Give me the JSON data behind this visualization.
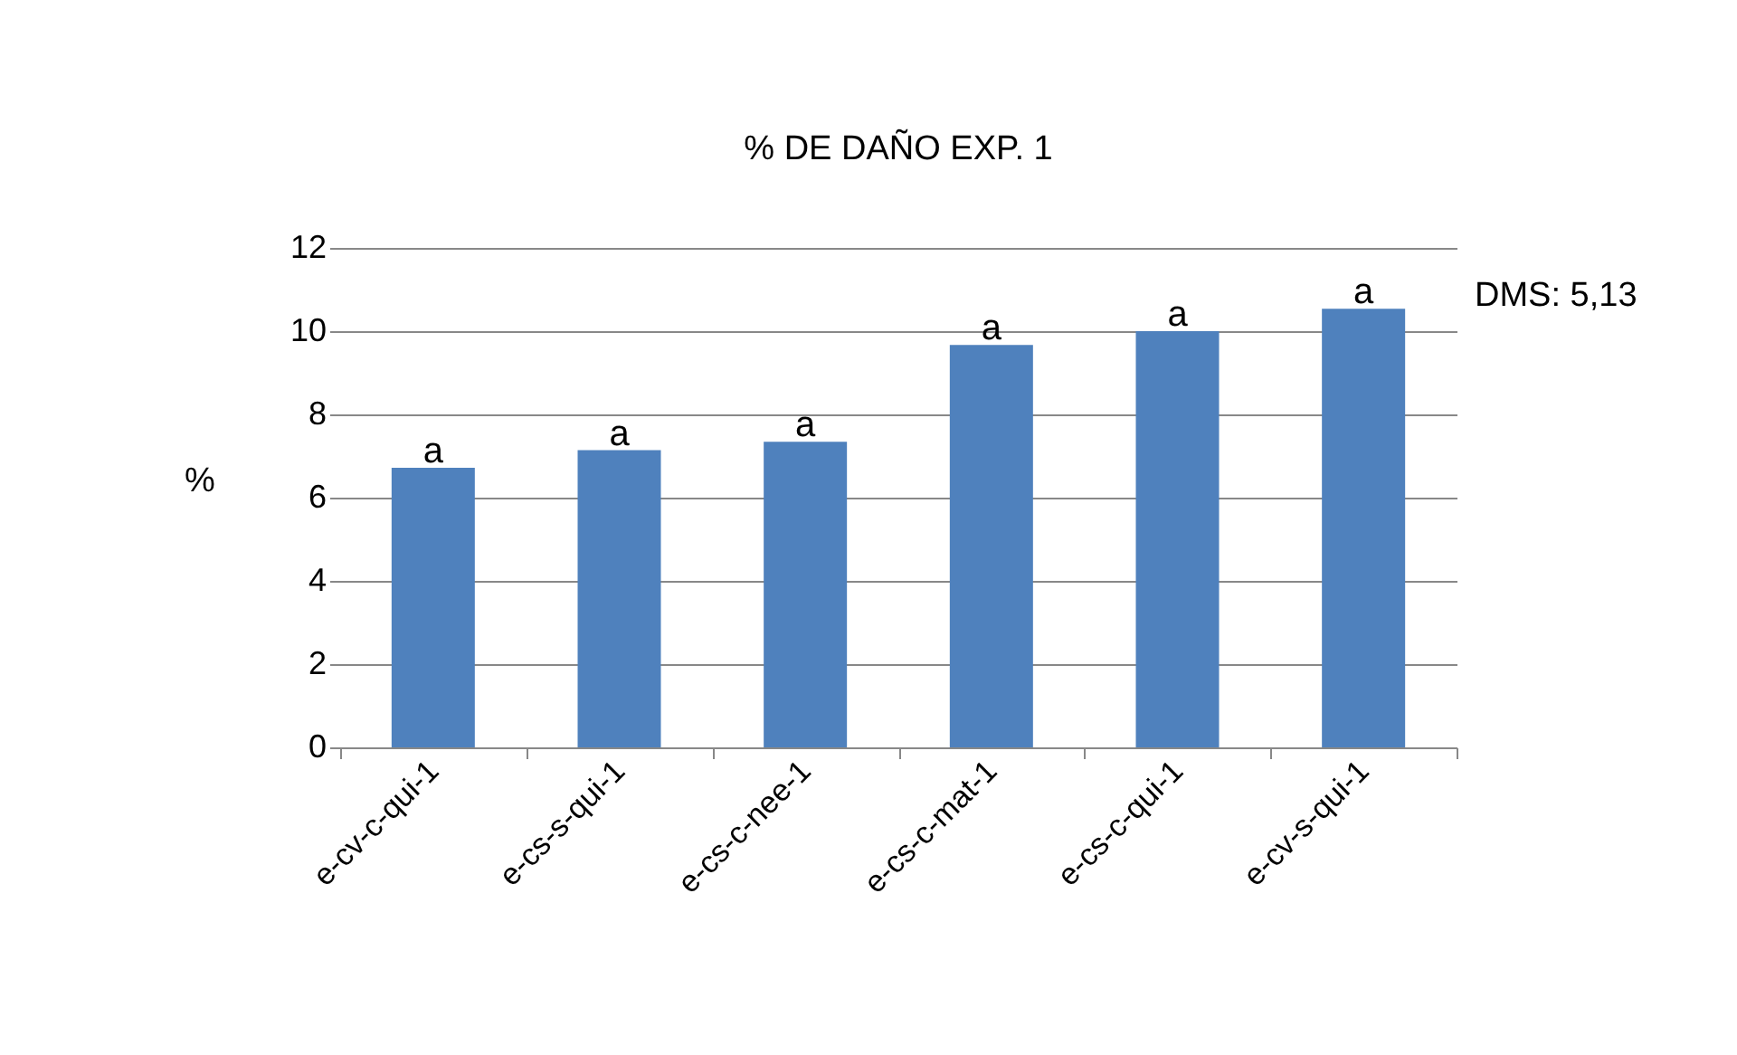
{
  "chart_data": {
    "type": "bar",
    "title": "% DE DAÑO EXP. 1",
    "ylabel": "%",
    "categories": [
      "e-cv-c-qui-1",
      "e-cs-s-qui-1",
      "e-cs-c-nee-1",
      "e-cs-c-mat-1",
      "e-cs-c-qui-1",
      "e-cv-s-qui-1"
    ],
    "values": [
      6.72,
      7.14,
      7.34,
      9.67,
      10.0,
      10.54
    ],
    "value_labels": [
      "a",
      "a",
      "a",
      "a",
      "a",
      "a"
    ],
    "color": "#4f81bd",
    "ylim": [
      0,
      12
    ],
    "yticks": [
      0,
      2,
      4,
      6,
      8,
      10,
      12
    ],
    "grid": "y",
    "annotations": [
      "DMS: 5,13"
    ]
  }
}
